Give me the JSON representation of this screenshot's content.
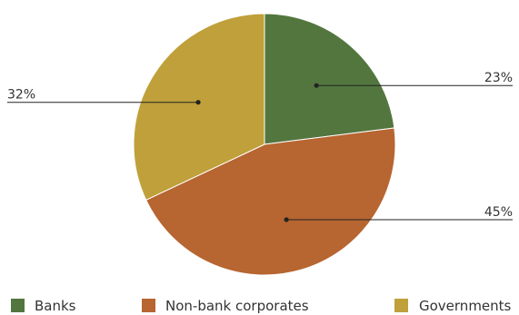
{
  "chart_data": {
    "type": "pie",
    "slices": [
      {
        "label": "Banks",
        "value": 23,
        "display": "23%",
        "color": "#53763f"
      },
      {
        "label": "Non-bank corporates",
        "value": 45,
        "display": "45%",
        "color": "#b76531"
      },
      {
        "label": "Governments",
        "value": 32,
        "display": "32%",
        "color": "#bfa03a"
      }
    ],
    "start_angle_deg": 0,
    "direction": "clockwise",
    "legend_position": "bottom"
  }
}
